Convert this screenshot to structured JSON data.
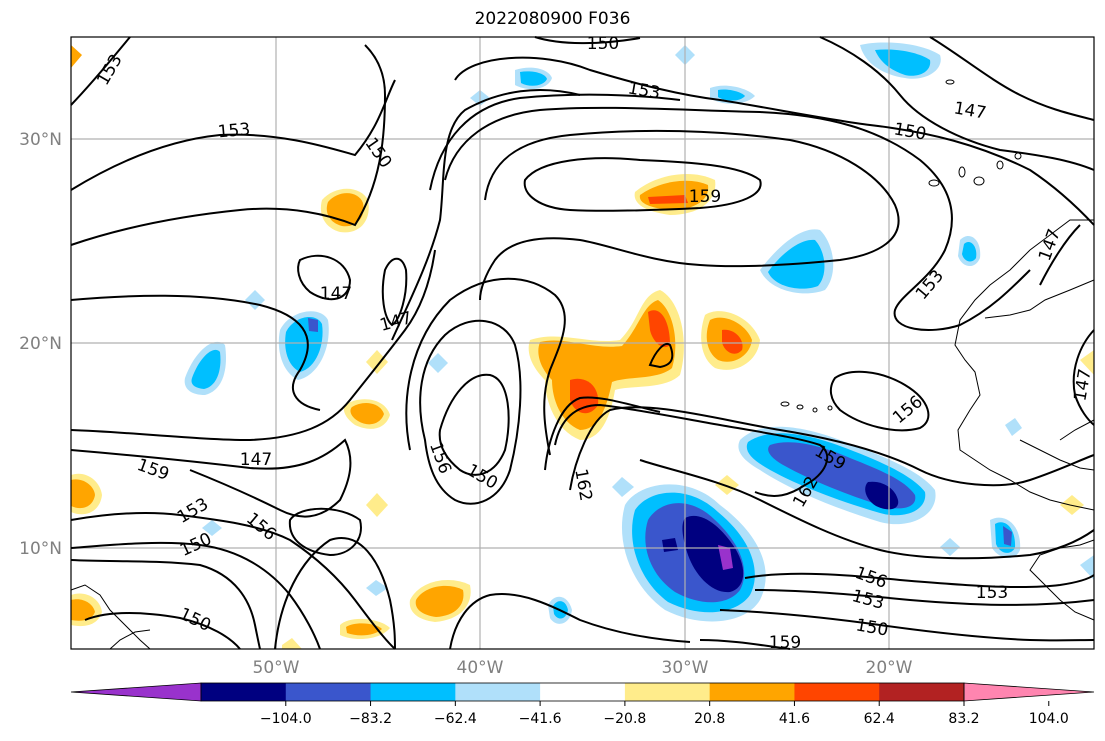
{
  "title": "2022080900 F036",
  "map": {
    "lat_labels": [
      "30°N",
      "20°N",
      "10°N"
    ],
    "lon_labels": [
      "50°W",
      "40°W",
      "30°W",
      "20°W"
    ],
    "contour_labels": [
      "150",
      "153",
      "153",
      "153",
      "150",
      "147",
      "150",
      "147",
      "147",
      "159",
      "153",
      "150",
      "147",
      "156",
      "159",
      "153",
      "150",
      "156",
      "153",
      "150",
      "162",
      "159",
      "162",
      "156",
      "153",
      "150",
      "159",
      "147",
      "147",
      "156"
    ]
  },
  "colorbar": {
    "ticks": [
      "−104.0",
      "−83.2",
      "−62.4",
      "−41.6",
      "−20.8",
      "20.8",
      "41.6",
      "62.4",
      "83.2",
      "104.0"
    ],
    "colors": [
      "#9932cc",
      "#000080",
      "#3a56cc",
      "#00bfff",
      "#b0e0fa",
      "#ffffff",
      "#ffec8b",
      "#ffa500",
      "#ff4500",
      "#b22222",
      "#ff85b0"
    ]
  }
}
